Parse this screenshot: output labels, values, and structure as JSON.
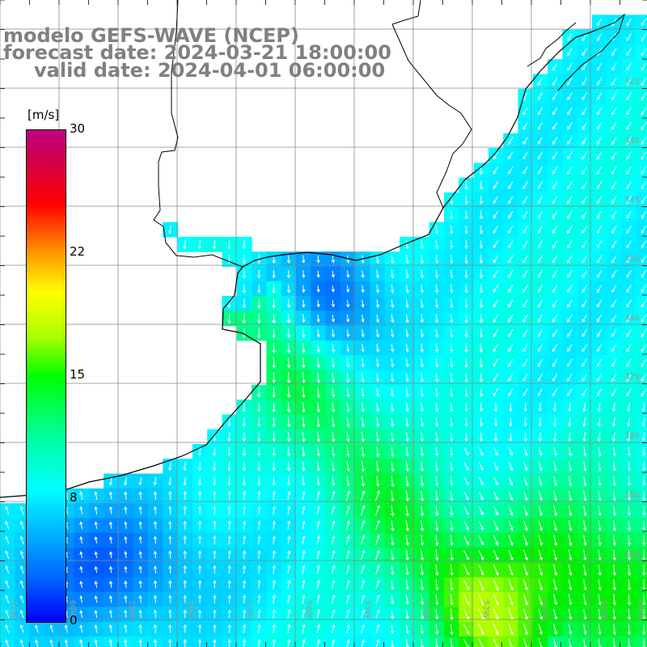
{
  "title": {
    "model": "modelo GEFS-WAVE (NCEP)",
    "forecast": "forecast date: 2024-03-21 18:00:00",
    "valid": "valid date: 2024-04-01 06:00:00"
  },
  "colorbar": {
    "unit": "[m/s]",
    "ticks": [
      "30",
      "22",
      "15",
      "8",
      "0"
    ],
    "colors": [
      "#0000ff",
      "#00ffff",
      "#00ff00",
      "#ffff00",
      "#ff0000",
      "#c0007f"
    ]
  },
  "grid": {
    "lon_labels": [
      "61W",
      "60W",
      "59W",
      "58W",
      "57W",
      "56W",
      "55W",
      "54W",
      "53W",
      "52W",
      "51W",
      "50W"
    ],
    "lat_labels": [
      "32S",
      "33S",
      "34S",
      "35S",
      "36S",
      "37S",
      "38S",
      "39S",
      "40S"
    ]
  },
  "map": {
    "field": "wind speed and direction",
    "land_color": "#ffffff",
    "coast_color": "#000000",
    "arrow_color": "#ffffff"
  }
}
